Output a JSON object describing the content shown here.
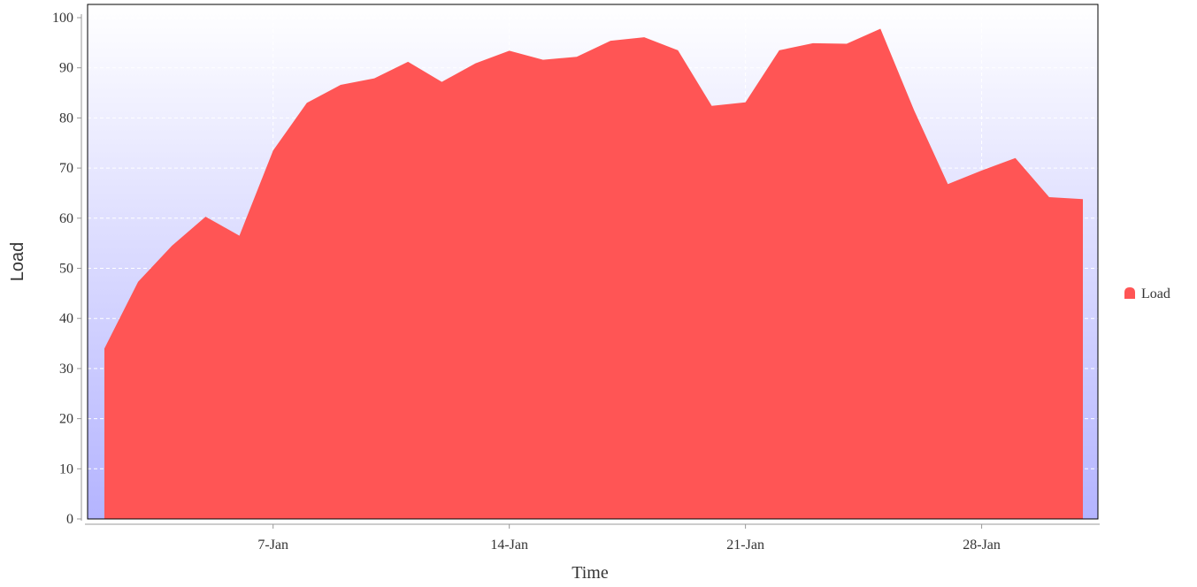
{
  "chart_data": {
    "type": "area",
    "title": "",
    "xlabel": "Time",
    "ylabel": "Load",
    "x_start": "1-Jan",
    "x_ticks": [
      {
        "day": 7,
        "label": "7-Jan"
      },
      {
        "day": 14,
        "label": "14-Jan"
      },
      {
        "day": 21,
        "label": "21-Jan"
      },
      {
        "day": 28,
        "label": "28-Jan"
      }
    ],
    "ylim": [
      0,
      100
    ],
    "y_ticks": [
      0,
      10,
      20,
      30,
      40,
      50,
      60,
      70,
      80,
      90,
      100
    ],
    "grid": true,
    "legend_position": "right",
    "series": [
      {
        "name": "Load",
        "color": "#ff5555",
        "x": [
          "2-Jan",
          "3-Jan",
          "4-Jan",
          "5-Jan",
          "6-Jan",
          "7-Jan",
          "8-Jan",
          "9-Jan",
          "10-Jan",
          "11-Jan",
          "12-Jan",
          "13-Jan",
          "14-Jan",
          "15-Jan",
          "16-Jan",
          "17-Jan",
          "18-Jan",
          "19-Jan",
          "20-Jan",
          "21-Jan",
          "22-Jan",
          "23-Jan",
          "24-Jan",
          "25-Jan",
          "26-Jan",
          "27-Jan",
          "28-Jan",
          "29-Jan",
          "30-Jan",
          "31-Jan"
        ],
        "days": [
          2,
          3,
          4,
          5,
          6,
          7,
          8,
          9,
          10,
          11,
          12,
          13,
          14,
          15,
          16,
          17,
          18,
          19,
          20,
          21,
          22,
          23,
          24,
          25,
          26,
          27,
          28,
          29,
          30,
          31
        ],
        "values": [
          34,
          47.3,
          54.5,
          60.3,
          56.5,
          73.5,
          83,
          86.6,
          87.9,
          91.2,
          87.2,
          90.9,
          93.4,
          91.6,
          92.2,
          95.4,
          96.1,
          93.5,
          82.4,
          83.1,
          93.5,
          94.9,
          94.8,
          97.8,
          81.5,
          66.8,
          69.5,
          72.0,
          64.2,
          63.8
        ]
      }
    ]
  },
  "legend": {
    "label": "Load"
  },
  "colors": {
    "background_top": "#ffffff",
    "background_bottom": "#b4b4ff",
    "area": "#ff5555"
  }
}
